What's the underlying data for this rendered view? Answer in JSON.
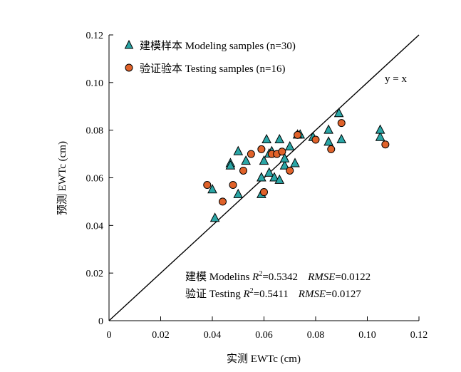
{
  "chart_data": {
    "type": "scatter",
    "xlabel": "实测 EWTc (cm)",
    "ylabel": "预测 EWTc (cm)",
    "xlim": [
      0,
      0.12
    ],
    "ylim": [
      0,
      0.12
    ],
    "xticks": [
      "0",
      "0.02",
      "0.04",
      "0.06",
      "0.08",
      "0.10",
      "0.12"
    ],
    "yticks": [
      "0",
      "0.02",
      "0.04",
      "0.06",
      "0.08",
      "0.10",
      "0.12"
    ],
    "xtick_values": [
      0,
      0.02,
      0.04,
      0.06,
      0.08,
      0.1,
      0.12
    ],
    "ytick_values": [
      0,
      0.02,
      0.04,
      0.06,
      0.08,
      0.1,
      0.12
    ],
    "reference_line": {
      "label": "y = x",
      "slope": 1,
      "intercept": 0
    },
    "legend_position": "top-left",
    "series": [
      {
        "name": "建模样本 Modeling samples (n=30)",
        "marker": "triangle",
        "color": "#2aa6a6",
        "points": [
          [
            0.04,
            0.055
          ],
          [
            0.041,
            0.043
          ],
          [
            0.047,
            0.066
          ],
          [
            0.05,
            0.053
          ],
          [
            0.05,
            0.071
          ],
          [
            0.053,
            0.067
          ],
          [
            0.059,
            0.053
          ],
          [
            0.059,
            0.06
          ],
          [
            0.06,
            0.067
          ],
          [
            0.061,
            0.076
          ],
          [
            0.062,
            0.062
          ],
          [
            0.063,
            0.071
          ],
          [
            0.064,
            0.06
          ],
          [
            0.066,
            0.059
          ],
          [
            0.066,
            0.076
          ],
          [
            0.068,
            0.065
          ],
          [
            0.068,
            0.068
          ],
          [
            0.07,
            0.073
          ],
          [
            0.072,
            0.066
          ],
          [
            0.074,
            0.078
          ],
          [
            0.079,
            0.077
          ],
          [
            0.085,
            0.075
          ],
          [
            0.085,
            0.08
          ],
          [
            0.089,
            0.087
          ],
          [
            0.09,
            0.076
          ],
          [
            0.105,
            0.077
          ],
          [
            0.105,
            0.08
          ],
          [
            0.073,
            0.078
          ],
          [
            0.062,
            0.07
          ],
          [
            0.047,
            0.065
          ]
        ]
      },
      {
        "name": "验证验本 Testing samples (n=16)",
        "marker": "circle",
        "color": "#e0622a",
        "points": [
          [
            0.038,
            0.057
          ],
          [
            0.044,
            0.05
          ],
          [
            0.048,
            0.057
          ],
          [
            0.052,
            0.063
          ],
          [
            0.055,
            0.07
          ],
          [
            0.059,
            0.072
          ],
          [
            0.06,
            0.054
          ],
          [
            0.063,
            0.07
          ],
          [
            0.065,
            0.07
          ],
          [
            0.067,
            0.071
          ],
          [
            0.07,
            0.063
          ],
          [
            0.073,
            0.078
          ],
          [
            0.08,
            0.076
          ],
          [
            0.086,
            0.072
          ],
          [
            0.09,
            0.083
          ],
          [
            0.107,
            0.074
          ]
        ]
      }
    ],
    "annotations": [
      {
        "prefix": "建模 Modelins ",
        "r2_value": "=0.5342",
        "rmse_value": "=0.0122"
      },
      {
        "prefix": "验证 Testing ",
        "r2_value": "=0.5411",
        "rmse_value": "=0.0127"
      }
    ],
    "r2_label": "R",
    "r2_sup": "2",
    "rmse_label": "RMSE"
  }
}
